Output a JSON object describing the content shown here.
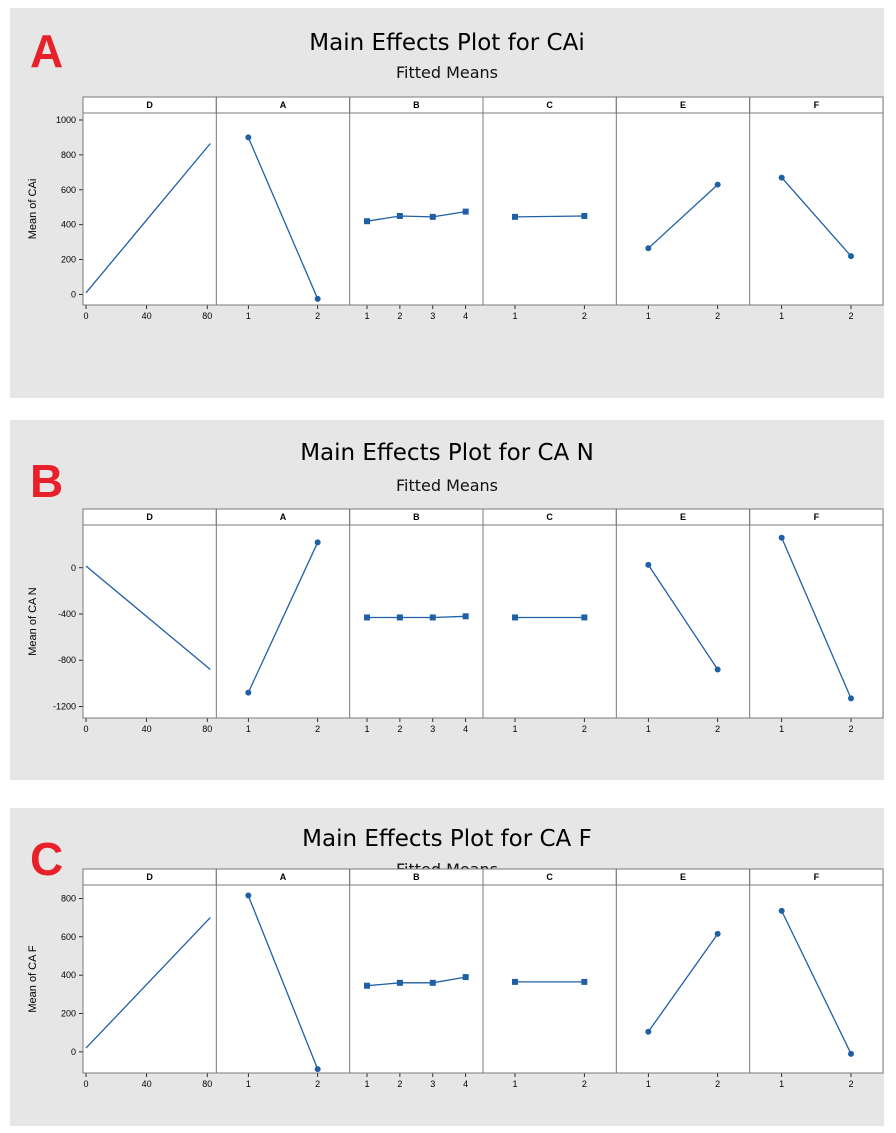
{
  "colors": {
    "series": "#1f5fa6",
    "letter": "#e8202a",
    "background": "#e6e6e6"
  },
  "chart_data": [
    {
      "type": "line",
      "letter": "A",
      "title": "Main Effects Plot for CAi",
      "subtitle": "Fitted Means",
      "ylabel": "Mean of CAi",
      "ylim": [
        -60,
        1040
      ],
      "yticks": [
        0,
        200,
        400,
        600,
        800,
        1000
      ],
      "panels": [
        {
          "name": "D",
          "kind": "continuous",
          "xlim": [
            -2,
            86
          ],
          "xticks": [
            0,
            40,
            80
          ],
          "x": [
            0,
            82
          ],
          "y": [
            10,
            865
          ]
        },
        {
          "name": "A",
          "categories": [
            "1",
            "2"
          ],
          "values": [
            900,
            -25
          ]
        },
        {
          "name": "B",
          "categories": [
            "1",
            "2",
            "3",
            "4"
          ],
          "values": [
            420,
            450,
            445,
            475
          ]
        },
        {
          "name": "C",
          "categories": [
            "1",
            "2"
          ],
          "values": [
            445,
            450
          ]
        },
        {
          "name": "E",
          "categories": [
            "1",
            "2"
          ],
          "values": [
            265,
            630
          ]
        },
        {
          "name": "F",
          "categories": [
            "1",
            "2"
          ],
          "values": [
            670,
            220
          ]
        }
      ]
    },
    {
      "type": "line",
      "letter": "B",
      "title": "Main Effects Plot for CA N",
      "subtitle": "Fitted Means",
      "ylabel": "Mean of CA N",
      "ylim": [
        -1300,
        370
      ],
      "yticks": [
        0,
        -400,
        -800,
        -1200
      ],
      "panels": [
        {
          "name": "D",
          "kind": "continuous",
          "xlim": [
            -2,
            86
          ],
          "xticks": [
            0,
            40,
            80
          ],
          "x": [
            0,
            82
          ],
          "y": [
            15,
            -880
          ]
        },
        {
          "name": "A",
          "categories": [
            "1",
            "2"
          ],
          "values": [
            -1080,
            220
          ]
        },
        {
          "name": "B",
          "categories": [
            "1",
            "2",
            "3",
            "4"
          ],
          "values": [
            -430,
            -430,
            -430,
            -420
          ]
        },
        {
          "name": "C",
          "categories": [
            "1",
            "2"
          ],
          "values": [
            -430,
            -430
          ]
        },
        {
          "name": "E",
          "categories": [
            "1",
            "2"
          ],
          "values": [
            25,
            -880
          ]
        },
        {
          "name": "F",
          "categories": [
            "1",
            "2"
          ],
          "values": [
            260,
            -1130
          ]
        }
      ]
    },
    {
      "type": "line",
      "letter": "C",
      "title": "Main Effects Plot for CA F",
      "subtitle": "Fitted Means",
      "ylabel": "Mean of CA F",
      "ylim": [
        -110,
        870
      ],
      "yticks": [
        0,
        200,
        400,
        600,
        800
      ],
      "panels": [
        {
          "name": "D",
          "kind": "continuous",
          "xlim": [
            -2,
            86
          ],
          "xticks": [
            0,
            40,
            80
          ],
          "x": [
            0,
            82
          ],
          "y": [
            20,
            700
          ]
        },
        {
          "name": "A",
          "categories": [
            "1",
            "2"
          ],
          "values": [
            815,
            -90
          ]
        },
        {
          "name": "B",
          "categories": [
            "1",
            "2",
            "3",
            "4"
          ],
          "values": [
            345,
            360,
            360,
            390
          ]
        },
        {
          "name": "C",
          "categories": [
            "1",
            "2"
          ],
          "values": [
            365,
            365
          ]
        },
        {
          "name": "E",
          "categories": [
            "1",
            "2"
          ],
          "values": [
            105,
            615
          ]
        },
        {
          "name": "F",
          "categories": [
            "1",
            "2"
          ],
          "values": [
            735,
            -10
          ]
        }
      ]
    }
  ]
}
